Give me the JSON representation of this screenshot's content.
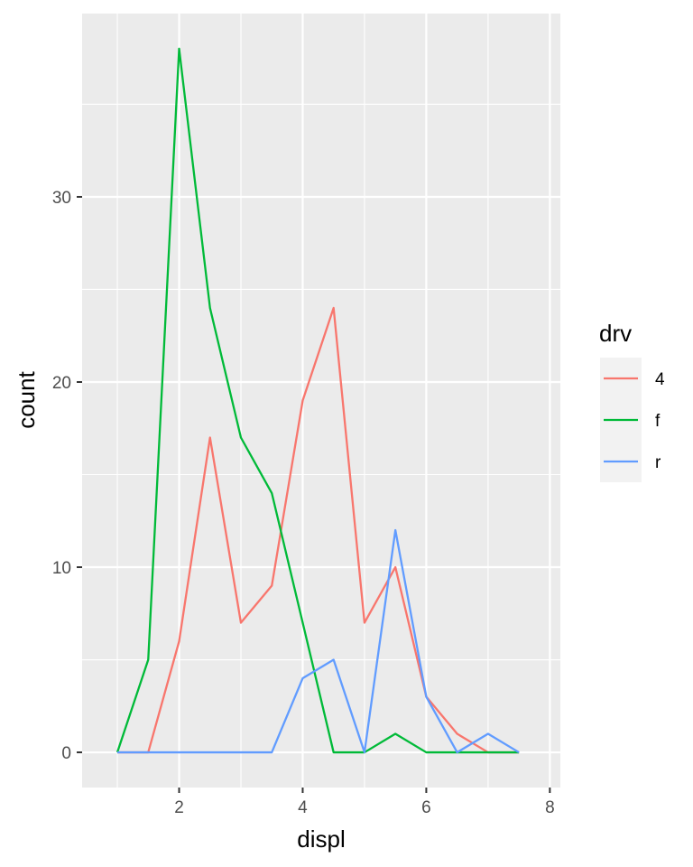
{
  "chart_data": {
    "type": "line",
    "title": "",
    "xlabel": "displ",
    "ylabel": "count",
    "xlim": [
      0.43,
      8.17
    ],
    "ylim": [
      -1.9,
      39.9
    ],
    "x_ticks": [
      2,
      4,
      6,
      8
    ],
    "y_ticks": [
      0,
      10,
      20,
      30
    ],
    "x_minor": [
      1,
      3,
      5,
      7
    ],
    "y_minor": [
      5,
      15,
      25,
      35
    ],
    "grid": true,
    "legend": {
      "title": "drv",
      "placement": "right"
    },
    "series": [
      {
        "name": "4",
        "color": "#f8766d",
        "x": [
          1,
          1.5,
          2,
          2.5,
          3,
          3.5,
          4,
          4.5,
          5,
          5.5,
          6,
          6.5,
          7,
          7.5
        ],
        "values": [
          0,
          0,
          6,
          17,
          7,
          9,
          19,
          24,
          7,
          10,
          3,
          1,
          0,
          0
        ]
      },
      {
        "name": "f",
        "color": "#00ba38",
        "x": [
          1,
          1.5,
          2,
          2.5,
          3,
          3.5,
          4,
          4.5,
          5,
          5.5,
          6,
          6.5,
          7,
          7.5
        ],
        "values": [
          0,
          5,
          38,
          24,
          17,
          14,
          7,
          0,
          0,
          1,
          0,
          0,
          0,
          0
        ]
      },
      {
        "name": "r",
        "color": "#619cff",
        "x": [
          1,
          1.5,
          2,
          2.5,
          3,
          3.5,
          4,
          4.5,
          5,
          5.5,
          6,
          6.5,
          7,
          7.5
        ],
        "values": [
          0,
          0,
          0,
          0,
          0,
          0,
          4,
          5,
          0,
          12,
          3,
          0,
          1,
          0
        ]
      }
    ]
  }
}
